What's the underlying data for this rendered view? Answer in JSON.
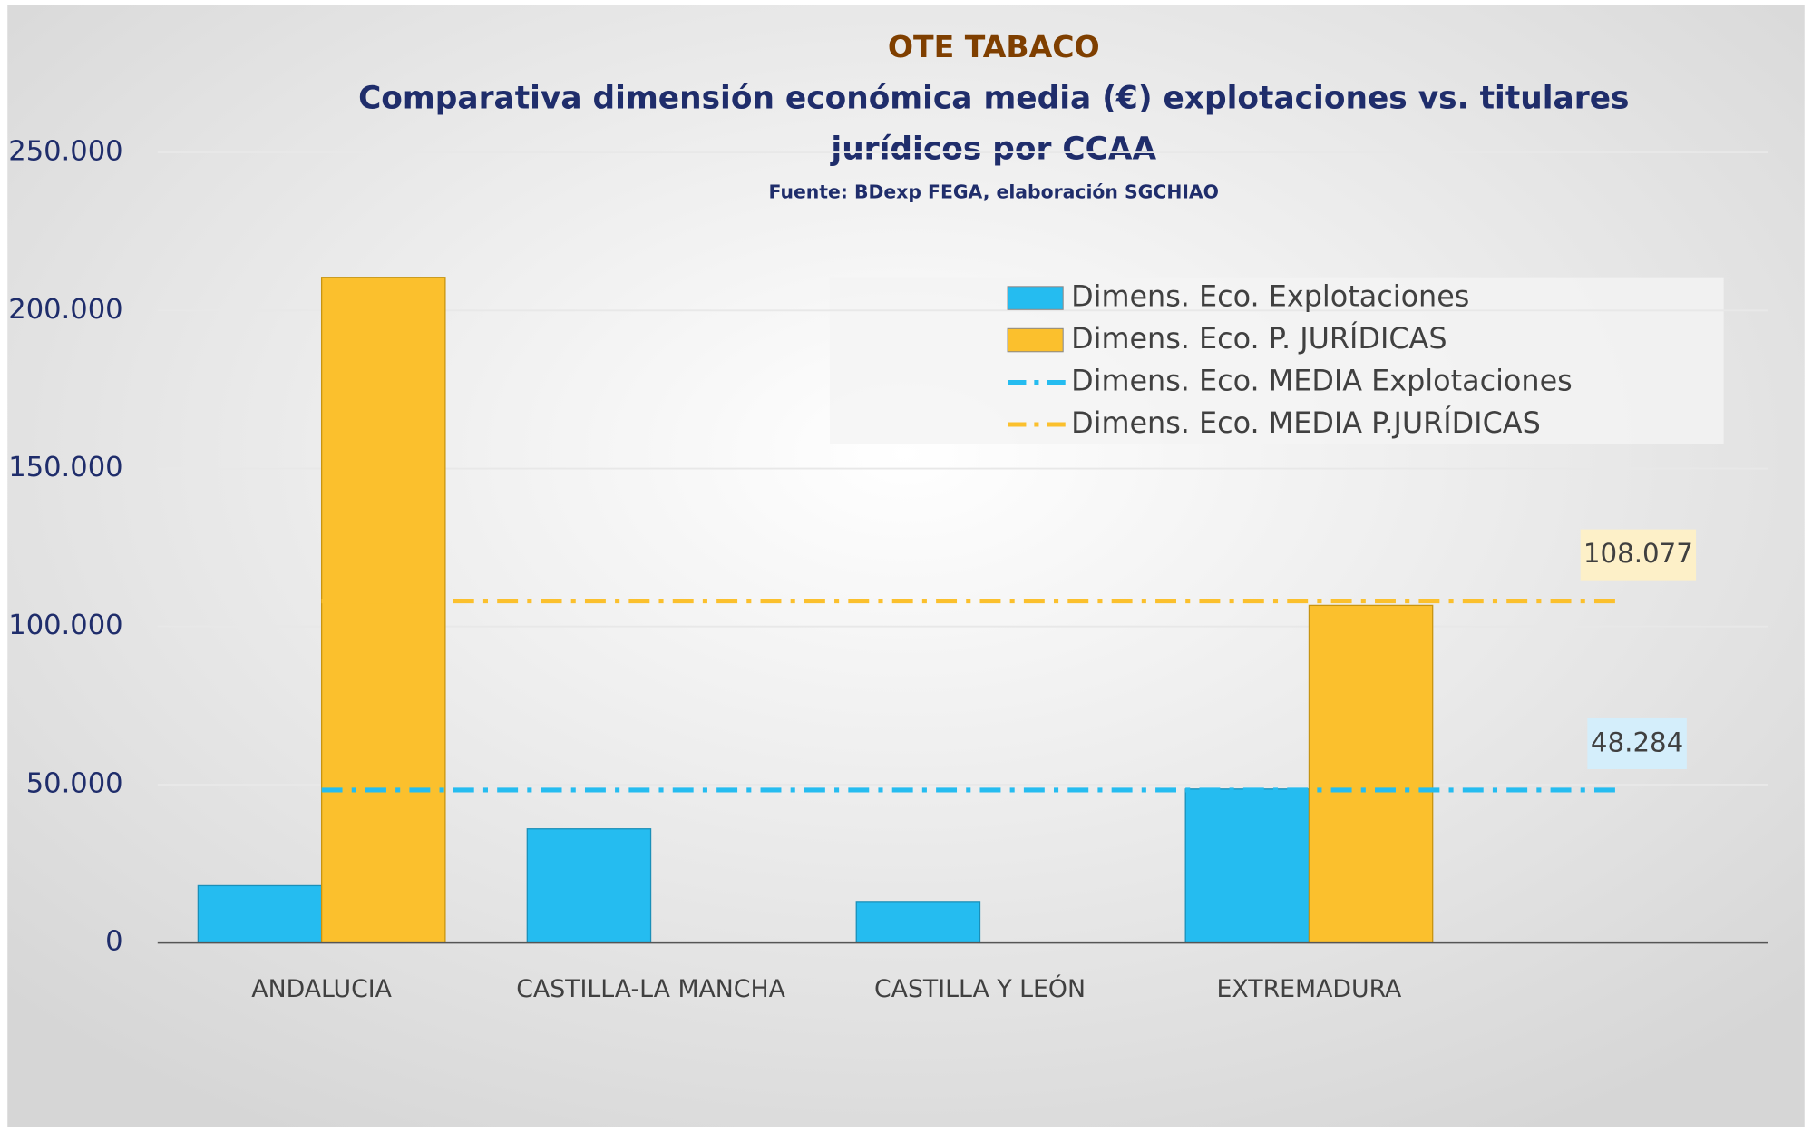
{
  "chart_data": {
    "type": "bar",
    "title": "OTE TABACO",
    "subtitle": "Comparativa dimensión económica media (€) explotaciones vs. titulares jurídicos por CCAA",
    "source": "Fuente: BDexp FEGA, elaboración SGCHIAO",
    "categories": [
      "ANDALUCIA",
      "CASTILLA-LA MANCHA",
      "CASTILLA Y LEÓN",
      "EXTREMADURA"
    ],
    "series": [
      {
        "name": "Dimens. Eco. Explotaciones",
        "color": "#25bcf0",
        "values": [
          18000,
          36000,
          13000,
          48600
        ]
      },
      {
        "name": "Dimens. Eco. P. JURÍDICAS",
        "color": "#fbc02d",
        "values": [
          210500,
          null,
          null,
          106700
        ]
      }
    ],
    "mean_lines": [
      {
        "name": "Dimens. Eco. MEDIA Explotaciones",
        "color": "#25bcf0",
        "value": 48284,
        "value_label": "48.284"
      },
      {
        "name": "Dimens. Eco. MEDIA P.JURÍDICAS",
        "color": "#fbc02d",
        "value": 108077,
        "value_label": "108.077"
      }
    ],
    "ylim": [
      0,
      250000
    ],
    "yticks": [
      0,
      {
        "value": 50000,
        "label": "50.000"
      },
      {
        "value": 100000,
        "label": "100.000"
      },
      {
        "value": 150000,
        "label": "150.000"
      },
      {
        "value": 200000,
        "label": "200.000"
      },
      {
        "value": 250000,
        "label": "250.000"
      }
    ],
    "grid": true
  }
}
